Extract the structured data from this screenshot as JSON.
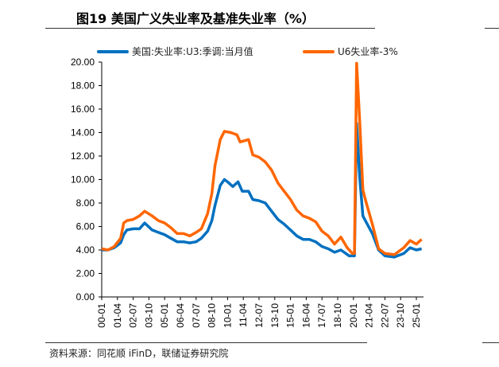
{
  "title": "图19 美国广义失业率及基准失业率（%）",
  "source": "资料来源：同花顺 iFinD，联储证券研究院",
  "chart_data": {
    "type": "line",
    "title": "图19 美国广义失业率及基准失业率（%）",
    "xlabel": "",
    "ylabel": "",
    "ylim": [
      0,
      20
    ],
    "yticks": [
      "0.00",
      "2.00",
      "4.00",
      "6.00",
      "8.00",
      "10.00",
      "12.00",
      "14.00",
      "16.00",
      "18.00",
      "20.00"
    ],
    "xticks": [
      "00-01",
      "01-04",
      "02-07",
      "03-10",
      "05-01",
      "06-04",
      "07-07",
      "08-10",
      "10-01",
      "11-04",
      "12-07",
      "13-10",
      "15-01",
      "16-04",
      "17-07",
      "18-10",
      "20-01",
      "21-04",
      "22-07",
      "23-10",
      "25-01"
    ],
    "legend_position": "top",
    "grid": false,
    "series": [
      {
        "name": "美国:失业率:U3:季调:当月值",
        "color": "#0070C0",
        "points": [
          [
            "2000-01",
            4.0
          ],
          [
            "2000-07",
            4.0
          ],
          [
            "2001-01",
            4.2
          ],
          [
            "2001-07",
            4.6
          ],
          [
            "2001-10",
            5.3
          ],
          [
            "2002-01",
            5.7
          ],
          [
            "2002-07",
            5.8
          ],
          [
            "2003-01",
            5.8
          ],
          [
            "2003-06",
            6.3
          ],
          [
            "2004-01",
            5.7
          ],
          [
            "2004-07",
            5.5
          ],
          [
            "2005-01",
            5.3
          ],
          [
            "2005-07",
            5.0
          ],
          [
            "2006-01",
            4.7
          ],
          [
            "2006-07",
            4.7
          ],
          [
            "2007-01",
            4.6
          ],
          [
            "2007-07",
            4.7
          ],
          [
            "2007-12",
            5.0
          ],
          [
            "2008-06",
            5.6
          ],
          [
            "2008-10",
            6.5
          ],
          [
            "2009-01",
            7.8
          ],
          [
            "2009-06",
            9.5
          ],
          [
            "2009-10",
            10.0
          ],
          [
            "2010-01",
            9.8
          ],
          [
            "2010-06",
            9.4
          ],
          [
            "2010-11",
            9.8
          ],
          [
            "2011-03",
            9.0
          ],
          [
            "2011-09",
            9.0
          ],
          [
            "2012-01",
            8.3
          ],
          [
            "2012-07",
            8.2
          ],
          [
            "2013-01",
            8.0
          ],
          [
            "2013-07",
            7.3
          ],
          [
            "2014-01",
            6.6
          ],
          [
            "2014-07",
            6.2
          ],
          [
            "2015-01",
            5.7
          ],
          [
            "2015-07",
            5.2
          ],
          [
            "2016-01",
            4.9
          ],
          [
            "2016-07",
            4.9
          ],
          [
            "2017-01",
            4.7
          ],
          [
            "2017-07",
            4.3
          ],
          [
            "2018-01",
            4.1
          ],
          [
            "2018-07",
            3.8
          ],
          [
            "2019-01",
            4.0
          ],
          [
            "2019-09",
            3.5
          ],
          [
            "2020-02",
            3.5
          ],
          [
            "2020-04",
            14.8
          ],
          [
            "2020-07",
            10.2
          ],
          [
            "2020-10",
            6.9
          ],
          [
            "2021-01",
            6.4
          ],
          [
            "2021-07",
            5.4
          ],
          [
            "2022-01",
            4.0
          ],
          [
            "2022-07",
            3.5
          ],
          [
            "2023-04",
            3.4
          ],
          [
            "2024-01",
            3.7
          ],
          [
            "2024-07",
            4.2
          ],
          [
            "2025-01",
            4.0
          ],
          [
            "2025-06",
            4.1
          ]
        ]
      },
      {
        "name": "U6失业率-3%",
        "color": "#FF6600",
        "points": [
          [
            "2000-01",
            4.1
          ],
          [
            "2000-07",
            4.0
          ],
          [
            "2001-01",
            4.3
          ],
          [
            "2001-07",
            5.0
          ],
          [
            "2001-10",
            6.3
          ],
          [
            "2002-01",
            6.5
          ],
          [
            "2002-07",
            6.6
          ],
          [
            "2003-01",
            6.9
          ],
          [
            "2003-06",
            7.3
          ],
          [
            "2004-01",
            6.9
          ],
          [
            "2004-07",
            6.5
          ],
          [
            "2005-01",
            6.3
          ],
          [
            "2005-07",
            5.9
          ],
          [
            "2006-01",
            5.4
          ],
          [
            "2006-07",
            5.4
          ],
          [
            "2007-01",
            5.2
          ],
          [
            "2007-07",
            5.5
          ],
          [
            "2007-12",
            5.8
          ],
          [
            "2008-06",
            7.1
          ],
          [
            "2008-10",
            8.8
          ],
          [
            "2009-01",
            11.2
          ],
          [
            "2009-06",
            13.4
          ],
          [
            "2009-10",
            14.1
          ],
          [
            "2010-04",
            14.0
          ],
          [
            "2010-10",
            13.8
          ],
          [
            "2011-01",
            13.2
          ],
          [
            "2011-09",
            13.4
          ],
          [
            "2012-01",
            12.1
          ],
          [
            "2012-07",
            11.9
          ],
          [
            "2013-01",
            11.5
          ],
          [
            "2013-07",
            10.8
          ],
          [
            "2014-01",
            9.7
          ],
          [
            "2014-07",
            9.0
          ],
          [
            "2015-01",
            8.3
          ],
          [
            "2015-07",
            7.4
          ],
          [
            "2016-01",
            6.9
          ],
          [
            "2016-07",
            6.7
          ],
          [
            "2017-01",
            6.4
          ],
          [
            "2017-07",
            5.6
          ],
          [
            "2018-01",
            5.2
          ],
          [
            "2018-07",
            4.5
          ],
          [
            "2019-01",
            5.1
          ],
          [
            "2019-07",
            4.2
          ],
          [
            "2019-12",
            3.7
          ],
          [
            "2020-02",
            3.7
          ],
          [
            "2020-04",
            19.9
          ],
          [
            "2020-07",
            15.0
          ],
          [
            "2020-10",
            9.1
          ],
          [
            "2021-01",
            8.1
          ],
          [
            "2021-07",
            6.2
          ],
          [
            "2022-01",
            4.1
          ],
          [
            "2022-07",
            3.7
          ],
          [
            "2023-04",
            3.6
          ],
          [
            "2024-01",
            4.2
          ],
          [
            "2024-07",
            4.8
          ],
          [
            "2025-01",
            4.5
          ],
          [
            "2025-06",
            4.9
          ]
        ]
      }
    ]
  }
}
